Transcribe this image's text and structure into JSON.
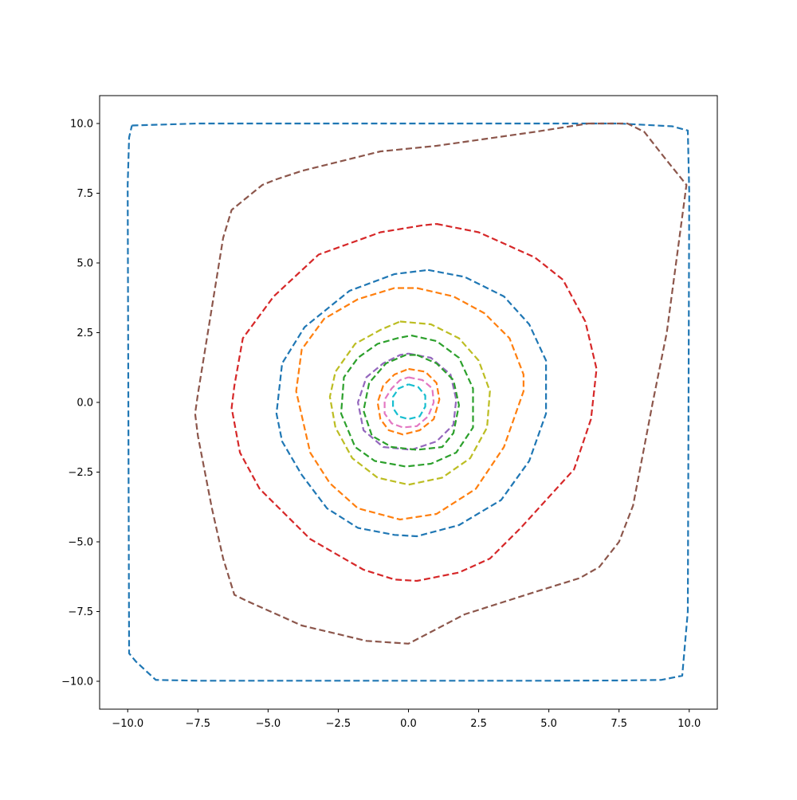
{
  "chart_data": {
    "type": "line",
    "title": "",
    "xlabel": "",
    "ylabel": "",
    "xlim": [
      -11,
      11
    ],
    "ylim": [
      -11,
      11
    ],
    "x_ticks": [
      -10,
      -7.5,
      -5,
      -2.5,
      0,
      2.5,
      5,
      7.5,
      10
    ],
    "y_ticks": [
      -10,
      -7.5,
      -5,
      -2.5,
      0,
      2.5,
      5,
      7.5,
      10
    ],
    "x_tick_labels": [
      "−10.0",
      "−7.5",
      "−5.0",
      "−2.5",
      "0.0",
      "2.5",
      "5.0",
      "7.5",
      "10.0"
    ],
    "y_tick_labels": [
      "−10.0",
      "−7.5",
      "−5.0",
      "−2.5",
      "0.0",
      "2.5",
      "5.0",
      "7.5",
      "10.0"
    ],
    "grid": false,
    "line_style": "dashed",
    "series": [
      {
        "color": "#1f77b4",
        "x": [
          -9.85,
          -7.5,
          -5,
          -2.5,
          0,
          2.5,
          5,
          7.5,
          9.4,
          9.95,
          10.0,
          9.95,
          9.75,
          9.0,
          7.5,
          5,
          2.5,
          0,
          -2.5,
          -5,
          -7.5,
          -9.0,
          -9.7,
          -9.95,
          -10.0,
          -9.95,
          -9.85
        ],
        "y": [
          9.93,
          10.0,
          10.0,
          10.0,
          10.0,
          10.0,
          10.0,
          10.0,
          9.9,
          9.75,
          7.5,
          -7.5,
          -9.8,
          -9.95,
          -9.97,
          -9.98,
          -9.98,
          -9.98,
          -9.98,
          -9.98,
          -9.98,
          -9.95,
          -9.3,
          -9.0,
          7.8,
          9.5,
          9.93
        ]
      },
      {
        "color": "#8c564b",
        "x": [
          6.4,
          7.8,
          8.4,
          9.1,
          9.9,
          9.2,
          8.7,
          8.0,
          7.5,
          6.8,
          6.1,
          4.5,
          2.0,
          0,
          -1.5,
          -3.8,
          -5.8,
          -6.2,
          -6.6,
          -7.0,
          -7.5,
          -7.6,
          -7.5,
          -6.6,
          -6.3,
          -5.2,
          -4.7,
          -3.8,
          -1.0,
          1.0,
          4.5,
          6.4
        ],
        "y": [
          10.0,
          10.0,
          9.7,
          8.8,
          7.8,
          2.5,
          0,
          -3.7,
          -5.0,
          -5.9,
          -6.3,
          -6.8,
          -7.6,
          -8.65,
          -8.55,
          -8.0,
          -7.1,
          -6.9,
          -5.6,
          -3.8,
          -1.2,
          -0.4,
          0.3,
          5.9,
          6.9,
          7.8,
          8.0,
          8.3,
          9.0,
          9.2,
          9.7,
          10.0
        ]
      },
      {
        "color": "#d62728",
        "x": [
          1.0,
          2.5,
          4.5,
          5.5,
          6.3,
          6.7,
          6.5,
          5.9,
          4.0,
          2.9,
          1.8,
          0.3,
          -0.5,
          -1.6,
          -3.5,
          -5.3,
          -6.0,
          -6.3,
          -6.2,
          -5.9,
          -4.8,
          -3.2,
          -1.0,
          0.5,
          1.0
        ],
        "y": [
          6.4,
          6.1,
          5.2,
          4.4,
          2.9,
          1.2,
          -0.6,
          -2.4,
          -4.5,
          -5.6,
          -6.1,
          -6.4,
          -6.35,
          -6.0,
          -4.9,
          -3.1,
          -1.8,
          -0.2,
          0.6,
          2.3,
          3.8,
          5.3,
          6.1,
          6.35,
          6.4
        ]
      },
      {
        "color": "#1f77b4",
        "x": [
          0.7,
          2.0,
          3.4,
          4.3,
          4.9,
          4.9,
          4.3,
          3.3,
          1.8,
          0.3,
          -0.5,
          -1.8,
          -2.9,
          -3.8,
          -4.5,
          -4.7,
          -4.5,
          -3.7,
          -2.1,
          -0.5,
          0.7
        ],
        "y": [
          4.75,
          4.5,
          3.8,
          2.8,
          1.5,
          -0.4,
          -2.1,
          -3.5,
          -4.4,
          -4.8,
          -4.75,
          -4.5,
          -3.8,
          -2.6,
          -1.4,
          -0.4,
          1.4,
          2.7,
          4.0,
          4.6,
          4.75
        ]
      },
      {
        "color": "#ff7f0e",
        "x": [
          0.3,
          1.6,
          2.7,
          3.6,
          4.1,
          4.1,
          3.4,
          2.4,
          1.0,
          -0.3,
          -1.8,
          -2.8,
          -3.5,
          -4.0,
          -3.8,
          -3.0,
          -1.8,
          -0.5,
          0.3
        ],
        "y": [
          4.1,
          3.8,
          3.2,
          2.3,
          1.0,
          0.4,
          -1.6,
          -3.1,
          -4.0,
          -4.2,
          -3.8,
          -2.9,
          -1.8,
          0.4,
          1.9,
          3.0,
          3.7,
          4.1,
          4.1
        ]
      },
      {
        "color": "#bcbd22",
        "x": [
          -0.3,
          0.8,
          1.8,
          2.5,
          2.9,
          2.8,
          2.2,
          1.2,
          0,
          -1.1,
          -2.0,
          -2.6,
          -2.8,
          -2.6,
          -1.9,
          -1.0,
          -0.3
        ],
        "y": [
          2.9,
          2.8,
          2.3,
          1.5,
          0.4,
          -0.9,
          -2.0,
          -2.7,
          -2.95,
          -2.7,
          -2.0,
          -0.9,
          0.2,
          1.1,
          2.1,
          2.6,
          2.9
        ]
      },
      {
        "color": "#2ca02c",
        "x": [
          0.1,
          1.0,
          1.8,
          2.3,
          2.3,
          1.7,
          0.8,
          -0.1,
          -1.2,
          -1.9,
          -2.4,
          -2.3,
          -1.8,
          -1.1,
          -0.4,
          0.1
        ],
        "y": [
          2.4,
          2.2,
          1.6,
          0.5,
          -0.9,
          -1.8,
          -2.2,
          -2.3,
          -2.1,
          -1.6,
          -0.4,
          0.9,
          1.6,
          2.1,
          2.3,
          2.4
        ]
      },
      {
        "color": "#9467bd",
        "x": [
          0,
          0.8,
          1.5,
          1.7,
          1.6,
          1.0,
          0.1,
          -0.9,
          -1.6,
          -1.8,
          -1.5,
          -0.9,
          -0.3,
          0
        ],
        "y": [
          1.75,
          1.6,
          1.0,
          0.1,
          -0.8,
          -1.4,
          -1.7,
          -1.6,
          -1.0,
          0,
          0.9,
          1.4,
          1.7,
          1.75
        ]
      },
      {
        "color": "#2ca02c",
        "x": [
          0.3,
          1.0,
          1.6,
          1.8,
          1.6,
          1.2,
          0.3,
          -0.6,
          -1.3,
          -1.6,
          -1.4,
          -0.8,
          -0.1,
          0.3
        ],
        "y": [
          1.7,
          1.4,
          0.8,
          -0.1,
          -1.1,
          -1.6,
          -1.7,
          -1.6,
          -1.2,
          -0.3,
          0.7,
          1.4,
          1.7,
          1.7
        ]
      },
      {
        "color": "#ff7f0e",
        "x": [
          0,
          0.6,
          1.0,
          1.1,
          0.9,
          0.4,
          -0.2,
          -0.7,
          -1.0,
          -1.1,
          -0.9,
          -0.5,
          0
        ],
        "y": [
          1.2,
          1.1,
          0.7,
          0.1,
          -0.6,
          -1.0,
          -1.15,
          -1.0,
          -0.6,
          0,
          0.6,
          1.0,
          1.2
        ]
      },
      {
        "color": "#e377c2",
        "x": [
          0,
          0.5,
          0.85,
          0.9,
          0.7,
          0.3,
          -0.2,
          -0.6,
          -0.85,
          -0.85,
          -0.6,
          -0.3,
          0
        ],
        "y": [
          0.9,
          0.8,
          0.5,
          0,
          -0.5,
          -0.85,
          -0.9,
          -0.75,
          -0.4,
          0.1,
          0.5,
          0.8,
          0.9
        ]
      },
      {
        "color": "#17becf",
        "x": [
          0,
          0.35,
          0.6,
          0.6,
          0.4,
          0,
          -0.35,
          -0.55,
          -0.55,
          -0.35,
          0
        ],
        "y": [
          0.65,
          0.55,
          0.25,
          -0.15,
          -0.5,
          -0.6,
          -0.5,
          -0.2,
          0.2,
          0.5,
          0.65
        ]
      }
    ]
  }
}
